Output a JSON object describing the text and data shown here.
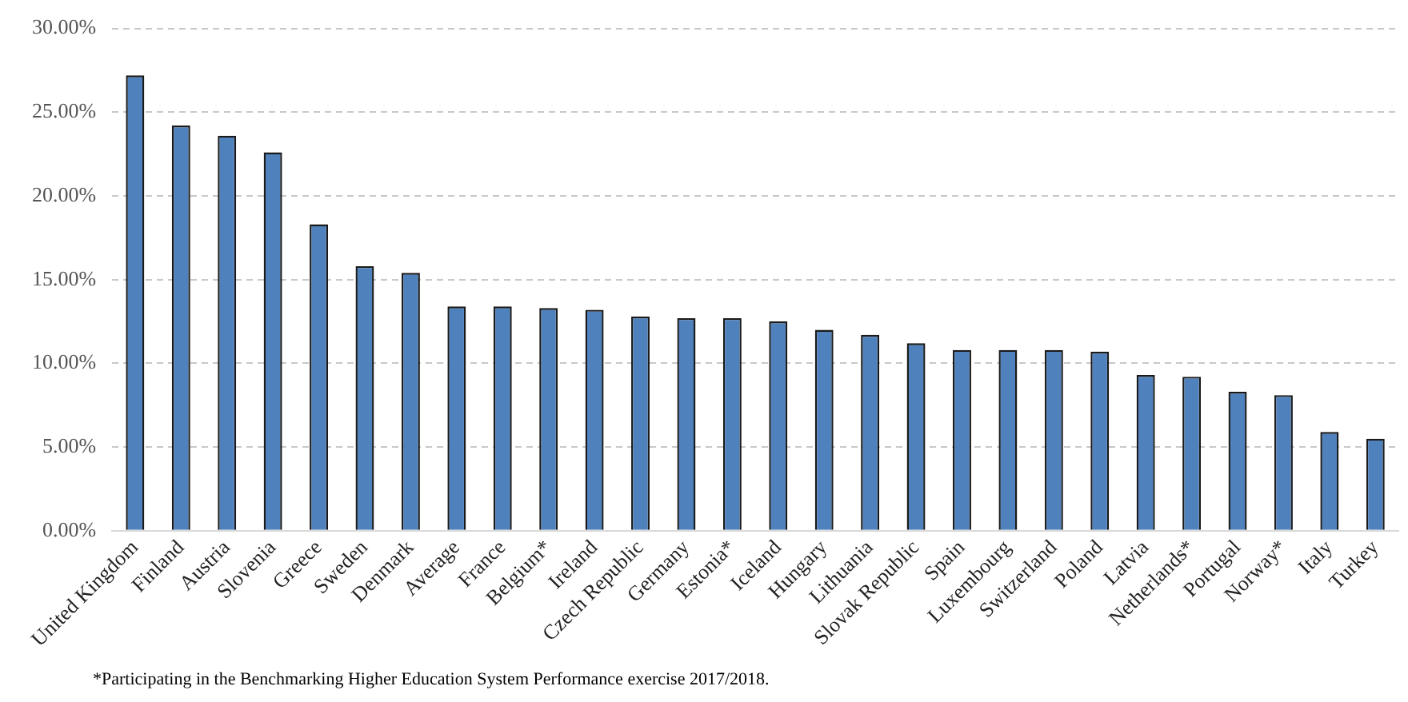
{
  "chart_data": {
    "type": "bar",
    "categories": [
      "United Kingdom",
      "Finland",
      "Austria",
      "Slovenia",
      "Greece",
      "Sweden",
      "Denmark",
      "Average",
      "France",
      "Belgium*",
      "Ireland",
      "Czech Republic",
      "Germany",
      "Estonia*",
      "Iceland",
      "Hungary",
      "Lithuania",
      "Slovak Republic",
      "Spain",
      "Luxembourg",
      "Switzerland",
      "Poland",
      "Latvia",
      "Netherlands*",
      "Portugal",
      "Norway*",
      "Italy",
      "Turkey"
    ],
    "values": [
      27.2,
      24.2,
      23.6,
      22.6,
      18.3,
      15.8,
      15.4,
      13.4,
      13.4,
      13.3,
      13.2,
      12.8,
      12.7,
      12.7,
      12.5,
      12.0,
      11.7,
      11.2,
      10.8,
      10.8,
      10.8,
      10.7,
      9.3,
      9.2,
      8.3,
      8.1,
      5.9,
      5.5
    ],
    "color": "#4f81bd",
    "ylim": [
      0,
      30
    ],
    "yticks": [
      {
        "value": 0,
        "label": "0.00%"
      },
      {
        "value": 5,
        "label": "5.00%"
      },
      {
        "value": 10,
        "label": "10.00%"
      },
      {
        "value": 15,
        "label": "15.00%"
      },
      {
        "value": 20,
        "label": "20.00%"
      },
      {
        "value": 25,
        "label": "25.00%"
      },
      {
        "value": 30,
        "label": "30.00%"
      }
    ],
    "grid": "y",
    "legend": false,
    "annotations": [
      "*Participating in the Benchmarking Higher Education System Performance exercise 2017/2018."
    ]
  }
}
